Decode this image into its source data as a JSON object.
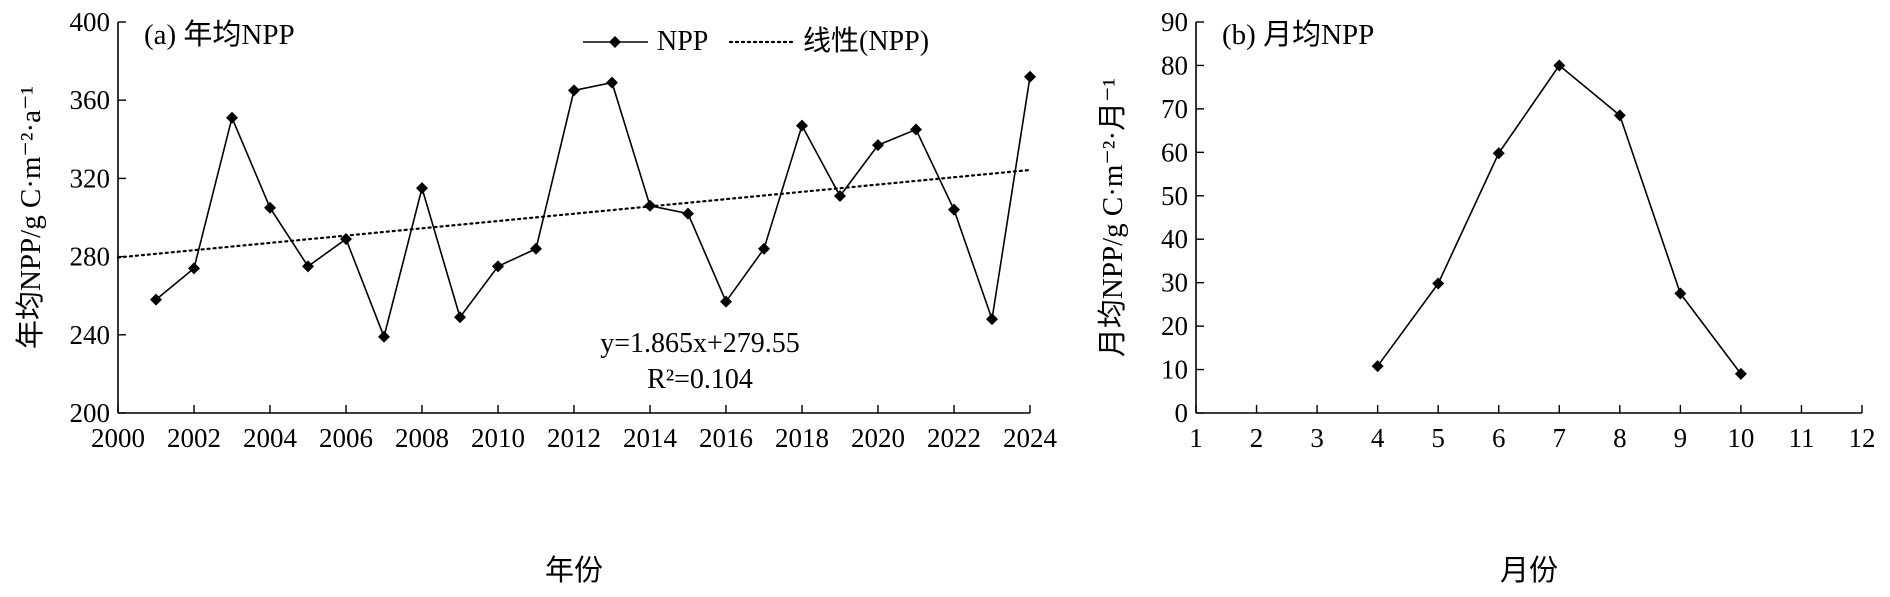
{
  "chart_data": [
    {
      "type": "line",
      "title": "(a) 年均NPP",
      "xlabel": "年份",
      "ylabel": "年均NPP/g C·m⁻²·a⁻¹",
      "xlim": [
        2000,
        2024
      ],
      "ylim": [
        200,
        400
      ],
      "xticks": [
        "2000",
        "2002",
        "2004",
        "2006",
        "2008",
        "2010",
        "2012",
        "2014",
        "2016",
        "2018",
        "2020",
        "2022",
        "2024"
      ],
      "yticks": [
        "200",
        "240",
        "280",
        "320",
        "360",
        "400"
      ],
      "legend": {
        "placement": "top-center",
        "entries": [
          "NPP",
          "线性(NPP)"
        ]
      },
      "series": [
        {
          "name": "NPP",
          "x": [
            2001,
            2002,
            2003,
            2004,
            2005,
            2006,
            2007,
            2008,
            2009,
            2010,
            2011,
            2012,
            2013,
            2014,
            2015,
            2016,
            2017,
            2018,
            2019,
            2020,
            2021,
            2022,
            2023,
            2024
          ],
          "values": [
            258,
            274,
            351,
            305,
            275,
            289,
            239,
            315,
            249,
            275,
            284,
            365,
            369,
            306,
            302,
            257,
            284,
            347,
            311,
            337,
            345,
            304,
            248,
            372
          ]
        },
        {
          "name": "线性(NPP)",
          "style": "dotted",
          "x": [
            2000,
            2024
          ],
          "values": [
            279.55,
            324.31
          ]
        }
      ],
      "annotations": [
        "y=1.865x+279.55",
        "R²=0.104"
      ],
      "grid": false
    },
    {
      "type": "line",
      "title": "(b) 月均NPP",
      "xlabel": "月份",
      "ylabel": "月均NPP/g C·m⁻²·月⁻¹",
      "xlim": [
        1,
        12
      ],
      "ylim": [
        0,
        90
      ],
      "xticks": [
        "1",
        "2",
        "3",
        "4",
        "5",
        "6",
        "7",
        "8",
        "9",
        "10",
        "11",
        "12"
      ],
      "yticks": [
        "0",
        "10",
        "20",
        "30",
        "40",
        "50",
        "60",
        "70",
        "80",
        "90"
      ],
      "series": [
        {
          "x": [
            4,
            5,
            6,
            7,
            8,
            9,
            10
          ],
          "values": [
            10.8,
            29.8,
            59.8,
            80.0,
            68.5,
            27.5,
            9.0
          ]
        }
      ],
      "grid": false
    }
  ]
}
